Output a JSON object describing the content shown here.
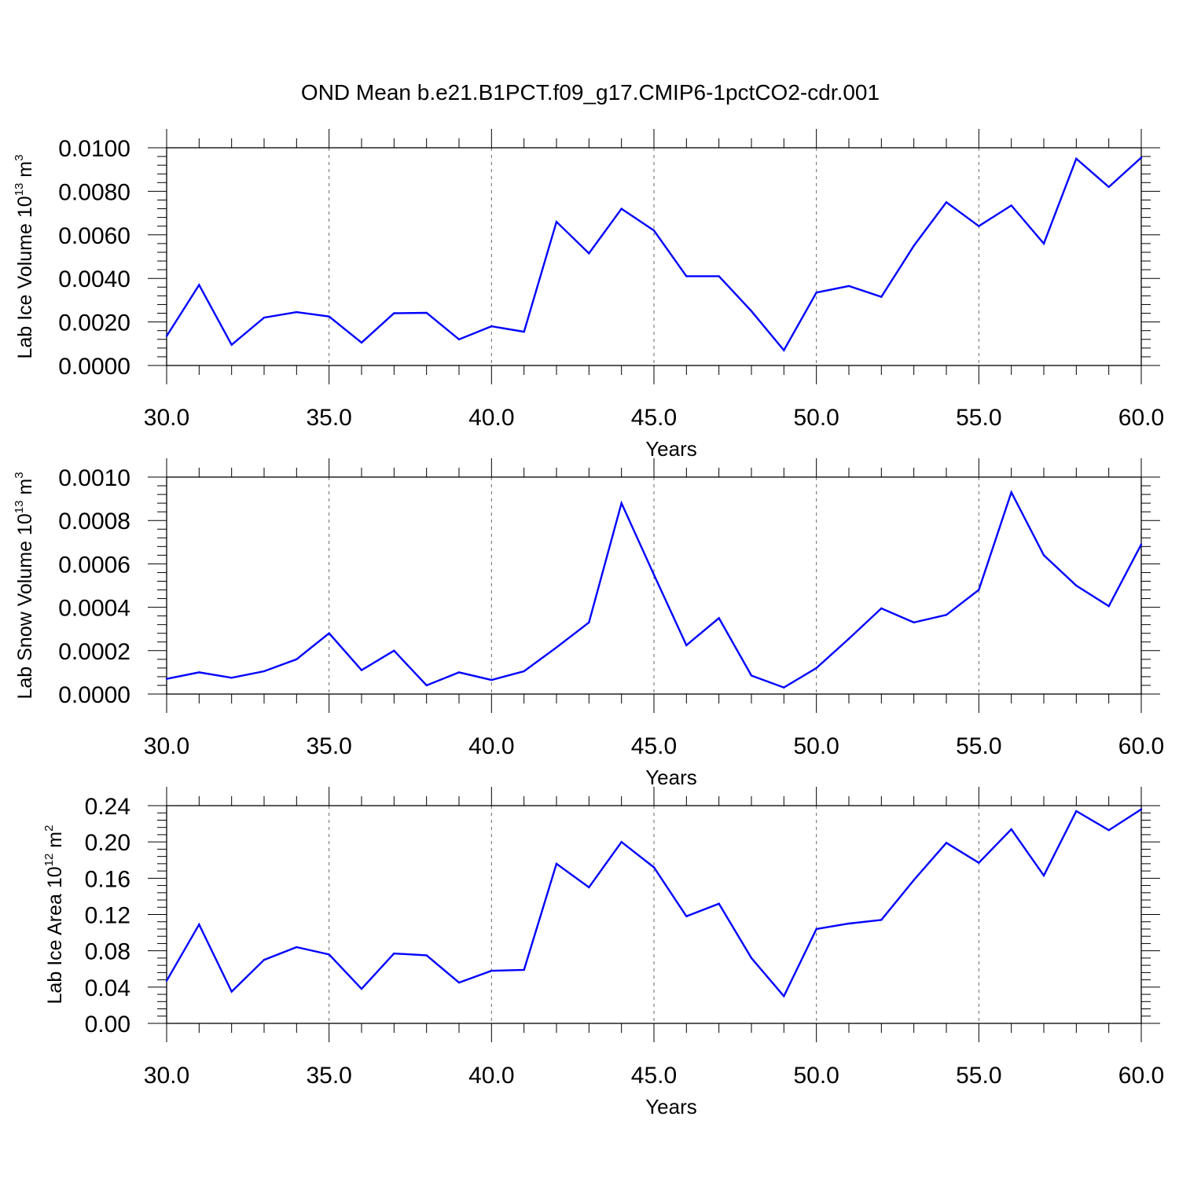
{
  "chart_data": [
    {
      "type": "line",
      "title": "OND Mean b.e21.B1PCT.f09_g17.CMIP6-1pctCO2-cdr.001",
      "xlabel": "Years",
      "ylabel": {
        "prefix": "Lab Ice Volume 10",
        "exp": "13",
        "unit": " m",
        "unit_exp": "3"
      },
      "xlim": [
        30,
        60
      ],
      "ylim": [
        0,
        0.01
      ],
      "xticks": [
        30,
        35,
        40,
        45,
        50,
        55,
        60
      ],
      "xtick_labels": [
        "30.0",
        "35.0",
        "40.0",
        "45.0",
        "50.0",
        "55.0",
        "60.0"
      ],
      "yticks": [
        0,
        0.002,
        0.004,
        0.006,
        0.008,
        0.01
      ],
      "ytick_labels": [
        "0.0000",
        "0.0020",
        "0.0040",
        "0.0060",
        "0.0080",
        "0.0100"
      ],
      "grid": "vertical dashed at major x ticks",
      "line_color": "#0000ff",
      "x": [
        30,
        31,
        32,
        33,
        34,
        35,
        36,
        37,
        38,
        39,
        40,
        41,
        42,
        43,
        44,
        45,
        46,
        47,
        48,
        49,
        50,
        51,
        52,
        53,
        54,
        55,
        56,
        57,
        58,
        59,
        60
      ],
      "values": [
        0.00135,
        0.0037,
        0.00095,
        0.0022,
        0.00245,
        0.00225,
        0.00105,
        0.0024,
        0.00242,
        0.0012,
        0.0018,
        0.00155,
        0.0066,
        0.00515,
        0.0072,
        0.0062,
        0.0041,
        0.0041,
        0.0025,
        0.0007,
        0.00335,
        0.00365,
        0.00315,
        0.0055,
        0.0075,
        0.0064,
        0.00735,
        0.0056,
        0.0095,
        0.0082,
        0.00955
      ]
    },
    {
      "type": "line",
      "title": "",
      "xlabel": "Years",
      "ylabel": {
        "prefix": "Lab Snow Volume 10",
        "exp": "13",
        "unit": " m",
        "unit_exp": "3"
      },
      "xlim": [
        30,
        60
      ],
      "ylim": [
        0,
        0.001
      ],
      "xticks": [
        30,
        35,
        40,
        45,
        50,
        55,
        60
      ],
      "xtick_labels": [
        "30.0",
        "35.0",
        "40.0",
        "45.0",
        "50.0",
        "55.0",
        "60.0"
      ],
      "yticks": [
        0,
        0.0002,
        0.0004,
        0.0006,
        0.0008,
        0.001
      ],
      "ytick_labels": [
        "0.0000",
        "0.0002",
        "0.0004",
        "0.0006",
        "0.0008",
        "0.0010"
      ],
      "grid": "vertical dashed at major x ticks",
      "line_color": "#0000ff",
      "x": [
        30,
        31,
        32,
        33,
        34,
        35,
        36,
        37,
        38,
        39,
        40,
        41,
        42,
        43,
        44,
        45,
        46,
        47,
        48,
        49,
        50,
        51,
        52,
        53,
        54,
        55,
        56,
        57,
        58,
        59,
        60
      ],
      "values": [
        7e-05,
        0.0001,
        7.5e-05,
        0.000105,
        0.00016,
        0.00028,
        0.00011,
        0.0002,
        4e-05,
        0.0001,
        6.5e-05,
        0.000105,
        0.000215,
        0.00033,
        0.00088,
        0.00055,
        0.000225,
        0.00035,
        8.5e-05,
        3e-05,
        0.00012,
        0.000255,
        0.000395,
        0.00033,
        0.000365,
        0.00048,
        0.00093,
        0.00064,
        0.0005,
        0.000405,
        0.00069
      ]
    },
    {
      "type": "line",
      "title": "",
      "xlabel": "Years",
      "ylabel": {
        "prefix": "Lab Ice Area 10",
        "exp": "12",
        "unit": " m",
        "unit_exp": "2"
      },
      "xlim": [
        30,
        60
      ],
      "ylim": [
        0,
        0.24
      ],
      "xticks": [
        30,
        35,
        40,
        45,
        50,
        55,
        60
      ],
      "xtick_labels": [
        "30.0",
        "35.0",
        "40.0",
        "45.0",
        "50.0",
        "55.0",
        "60.0"
      ],
      "yticks": [
        0,
        0.04,
        0.08,
        0.12,
        0.16,
        0.2,
        0.24
      ],
      "ytick_labels": [
        "0.00",
        "0.04",
        "0.08",
        "0.12",
        "0.16",
        "0.20",
        "0.24"
      ],
      "grid": "vertical dashed at major x ticks",
      "line_color": "#0000ff",
      "x": [
        30,
        31,
        32,
        33,
        34,
        35,
        36,
        37,
        38,
        39,
        40,
        41,
        42,
        43,
        44,
        45,
        46,
        47,
        48,
        49,
        50,
        51,
        52,
        53,
        54,
        55,
        56,
        57,
        58,
        59,
        60
      ],
      "values": [
        0.047,
        0.109,
        0.035,
        0.07,
        0.084,
        0.076,
        0.038,
        0.077,
        0.075,
        0.045,
        0.058,
        0.059,
        0.176,
        0.15,
        0.2,
        0.172,
        0.118,
        0.132,
        0.072,
        0.03,
        0.104,
        0.11,
        0.114,
        0.158,
        0.199,
        0.177,
        0.214,
        0.163,
        0.234,
        0.213,
        0.236
      ]
    }
  ]
}
